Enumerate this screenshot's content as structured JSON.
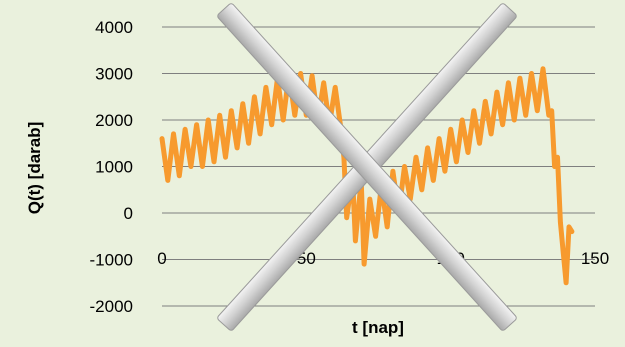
{
  "colors": {
    "background": "#eaf1dd",
    "series": "#f79a2e",
    "grid": "#7f7f7f",
    "cross": "#c8c8c8"
  },
  "overlay": {
    "type": "cross",
    "meaning": "rejected-chart"
  },
  "chart_data": {
    "type": "line",
    "xlabel": "t [nap]",
    "ylabel": "Q(t) [darab]",
    "xlim": [
      0,
      150
    ],
    "ylim": [
      -2000,
      4000
    ],
    "x_ticks": [
      "0",
      "50",
      "100",
      "150"
    ],
    "y_ticks": [
      "4000",
      "3000",
      "2000",
      "1000",
      "0",
      "-1000",
      "-2000"
    ],
    "grid": "horizontal",
    "legend": "none",
    "series": [
      {
        "values": [
          [
            0,
            1600
          ],
          [
            2,
            700
          ],
          [
            4,
            1700
          ],
          [
            6,
            800
          ],
          [
            8,
            1800
          ],
          [
            10,
            1000
          ],
          [
            12,
            1900
          ],
          [
            14,
            1000
          ],
          [
            16,
            2000
          ],
          [
            18,
            1100
          ],
          [
            20,
            2100
          ],
          [
            22,
            1200
          ],
          [
            24,
            2200
          ],
          [
            26,
            1400
          ],
          [
            28,
            2350
          ],
          [
            30,
            1500
          ],
          [
            32,
            2500
          ],
          [
            34,
            1700
          ],
          [
            36,
            2700
          ],
          [
            38,
            1900
          ],
          [
            40,
            2900
          ],
          [
            42,
            2000
          ],
          [
            44,
            3000
          ],
          [
            46,
            2100
          ],
          [
            48,
            3000
          ],
          [
            50,
            2100
          ],
          [
            52,
            2950
          ],
          [
            54,
            2000
          ],
          [
            56,
            2800
          ],
          [
            58,
            1900
          ],
          [
            60,
            2700
          ],
          [
            62,
            1800
          ],
          [
            63,
            1200
          ],
          [
            64,
            -100
          ],
          [
            66,
            800
          ],
          [
            67,
            -600
          ],
          [
            69,
            700
          ],
          [
            70,
            -1100
          ],
          [
            72,
            300
          ],
          [
            74,
            -500
          ],
          [
            76,
            600
          ],
          [
            78,
            -300
          ],
          [
            80,
            900
          ],
          [
            82,
            0
          ],
          [
            84,
            1000
          ],
          [
            86,
            300
          ],
          [
            88,
            1200
          ],
          [
            90,
            500
          ],
          [
            92,
            1400
          ],
          [
            94,
            700
          ],
          [
            96,
            1600
          ],
          [
            98,
            900
          ],
          [
            100,
            1800
          ],
          [
            102,
            1100
          ],
          [
            104,
            2000
          ],
          [
            106,
            1300
          ],
          [
            108,
            2200
          ],
          [
            110,
            1500
          ],
          [
            112,
            2400
          ],
          [
            114,
            1700
          ],
          [
            116,
            2600
          ],
          [
            118,
            1900
          ],
          [
            120,
            2800
          ],
          [
            122,
            2000
          ],
          [
            124,
            2900
          ],
          [
            126,
            2100
          ],
          [
            128,
            3000
          ],
          [
            130,
            2200
          ],
          [
            132,
            3100
          ],
          [
            134,
            2100
          ],
          [
            135,
            2200
          ],
          [
            136,
            1000
          ],
          [
            137,
            1200
          ],
          [
            138,
            -200
          ],
          [
            140,
            -1500
          ],
          [
            141,
            -300
          ],
          [
            142,
            -400
          ]
        ]
      }
    ]
  }
}
